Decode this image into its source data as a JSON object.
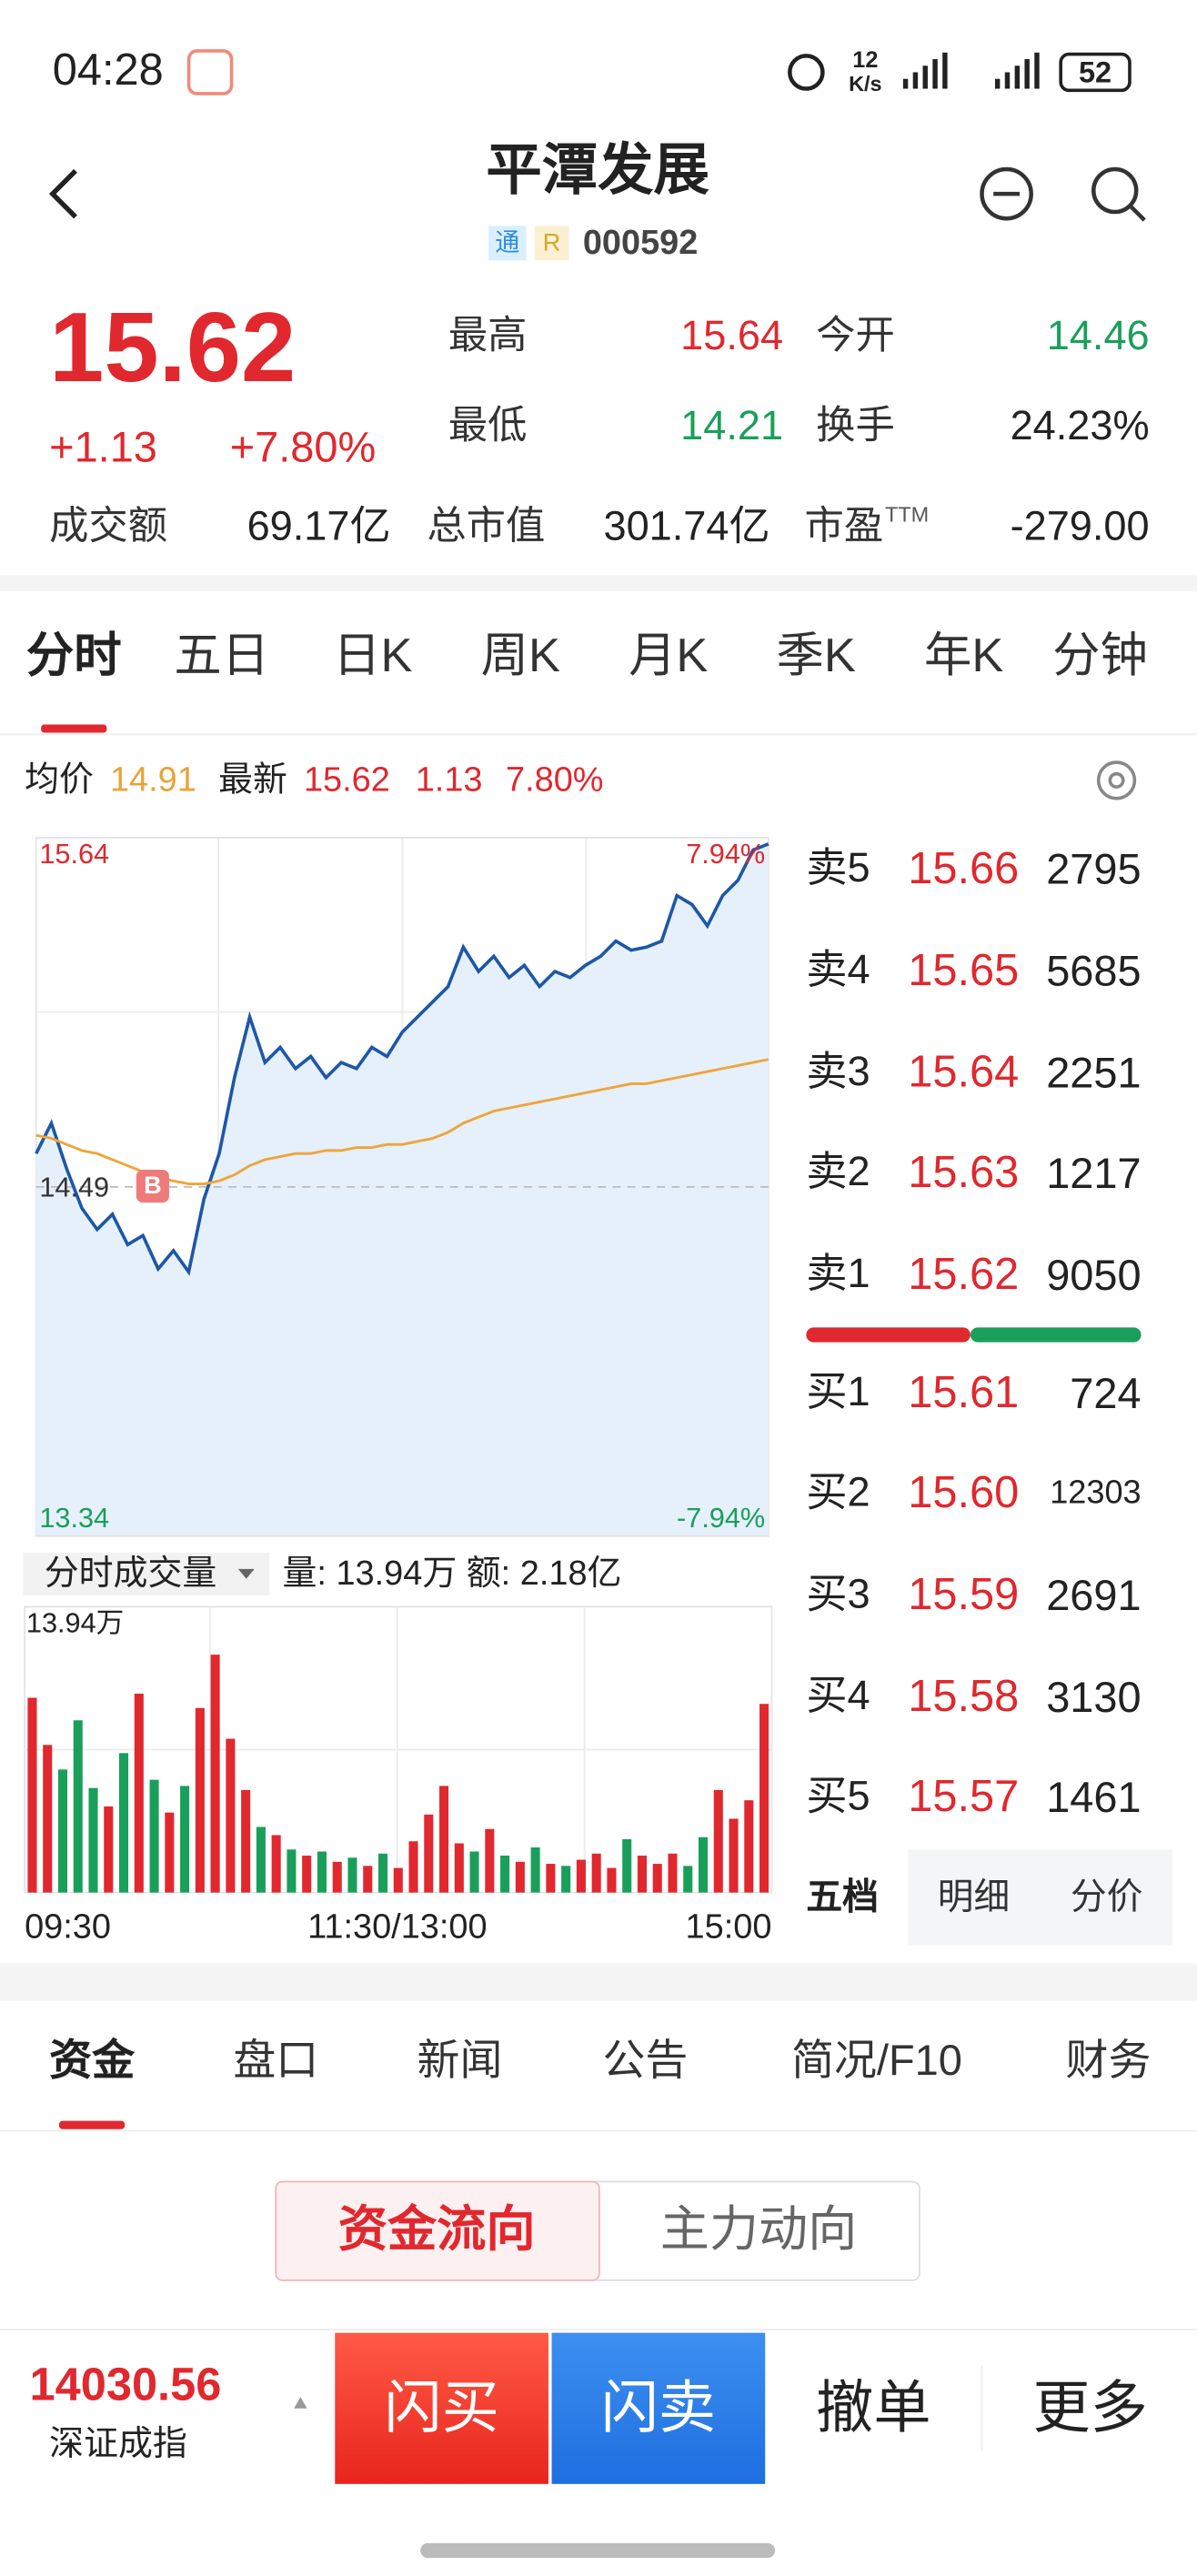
{
  "status": {
    "time": "04:28",
    "speed_num": "12",
    "speed_unit": "K/s",
    "battery": "52"
  },
  "header": {
    "title": "平潭发展",
    "badges": [
      "通",
      "R"
    ],
    "code": "000592"
  },
  "quote": {
    "price": "15.62",
    "change": "+1.13",
    "pct": "+7.80%",
    "stats": [
      {
        "label": "最高",
        "value": "15.64"
      },
      {
        "label": "今开",
        "value": "14.46"
      },
      {
        "label": "最低",
        "value": "14.21"
      },
      {
        "label": "换手",
        "value": "24.23%"
      },
      {
        "label": "成交额",
        "value": "69.17亿"
      },
      {
        "label": "总市值",
        "value": "301.74亿"
      },
      {
        "label": "市盈",
        "suffix": "TTM",
        "value": "-279.00"
      }
    ]
  },
  "tabs": [
    "分时",
    "五日",
    "日K",
    "周K",
    "月K",
    "季K",
    "年K",
    "分钟"
  ],
  "info": {
    "avg_label": "均价",
    "avg": "14.91",
    "last_label": "最新",
    "last": "15.62",
    "chg": "1.13",
    "pct": "7.80%"
  },
  "intraday": {
    "ylim": [
      13.34,
      15.64
    ],
    "yticks": [
      15.64,
      14.49,
      13.34
    ],
    "pct_high": "7.94%",
    "pct_low": "-7.94%",
    "marker": "B",
    "price": [
      14.6,
      14.7,
      14.55,
      14.42,
      14.35,
      14.4,
      14.3,
      14.33,
      14.22,
      14.28,
      14.21,
      14.45,
      14.6,
      14.85,
      15.05,
      14.9,
      14.95,
      14.88,
      14.92,
      14.85,
      14.9,
      14.88,
      14.95,
      14.92,
      15.0,
      15.05,
      15.1,
      15.15,
      15.28,
      15.2,
      15.25,
      15.18,
      15.22,
      15.15,
      15.2,
      15.18,
      15.22,
      15.25,
      15.3,
      15.27,
      15.28,
      15.3,
      15.45,
      15.42,
      15.35,
      15.45,
      15.5,
      15.6,
      15.62
    ],
    "avg": [
      14.66,
      14.65,
      14.63,
      14.61,
      14.6,
      14.58,
      14.56,
      14.54,
      14.52,
      14.51,
      14.5,
      14.5,
      14.51,
      14.53,
      14.56,
      14.58,
      14.59,
      14.6,
      14.6,
      14.61,
      14.61,
      14.62,
      14.62,
      14.63,
      14.63,
      14.64,
      14.65,
      14.67,
      14.7,
      14.72,
      14.74,
      14.75,
      14.76,
      14.77,
      14.78,
      14.79,
      14.8,
      14.81,
      14.82,
      14.83,
      14.83,
      14.84,
      14.85,
      14.86,
      14.87,
      14.88,
      14.89,
      14.9,
      14.91
    ]
  },
  "volume": {
    "label": "分时成交量",
    "summary": "量: 13.94万 额: 2.18亿",
    "ylim": [
      0,
      13.94
    ],
    "yticks": [
      {
        "value": 13.94,
        "label": "13.94万"
      }
    ],
    "values": [
      9.5,
      7.2,
      6.0,
      8.4,
      5.1,
      4.2,
      6.8,
      9.7,
      5.5,
      3.9,
      5.2,
      9.0,
      11.6,
      7.5,
      5.0,
      3.2,
      2.8,
      2.1,
      1.8,
      2.0,
      1.5,
      1.7,
      1.3,
      1.9,
      1.2,
      2.5,
      3.8,
      5.2,
      2.4,
      2.0,
      3.1,
      1.8,
      1.5,
      2.2,
      1.4,
      1.3,
      1.6,
      1.9,
      1.2,
      2.6,
      1.8,
      1.4,
      1.9,
      1.3,
      2.7,
      5.0,
      3.6,
      4.5,
      9.2
    ],
    "xticks": [
      "09:30",
      "11:30/13:00",
      "15:00"
    ]
  },
  "book": {
    "asks": [
      {
        "label": "卖5",
        "price": "15.66",
        "volume": "2795"
      },
      {
        "label": "卖4",
        "price": "15.65",
        "volume": "5685"
      },
      {
        "label": "卖3",
        "price": "15.64",
        "volume": "2251"
      },
      {
        "label": "卖2",
        "price": "15.63",
        "volume": "1217"
      },
      {
        "label": "卖1",
        "price": "15.62",
        "volume": "9050"
      }
    ],
    "bids": [
      {
        "label": "买1",
        "price": "15.61",
        "volume": "724"
      },
      {
        "label": "买2",
        "price": "15.60",
        "volume": "12303"
      },
      {
        "label": "买3",
        "price": "15.59",
        "volume": "2691"
      },
      {
        "label": "买4",
        "price": "15.58",
        "volume": "3130"
      },
      {
        "label": "买5",
        "price": "15.57",
        "volume": "1461"
      }
    ],
    "tabs": [
      "五档",
      "明细",
      "分价"
    ]
  },
  "section_tabs": [
    "资金",
    "盘口",
    "新闻",
    "公告",
    "简况/F10",
    "财务"
  ],
  "fund_buttons": [
    "资金流向",
    "主力动向"
  ],
  "footer": {
    "index_value": "14030.56",
    "index_name": "深证成指",
    "actions": [
      "闪买",
      "闪卖",
      "撤单",
      "更多"
    ]
  }
}
